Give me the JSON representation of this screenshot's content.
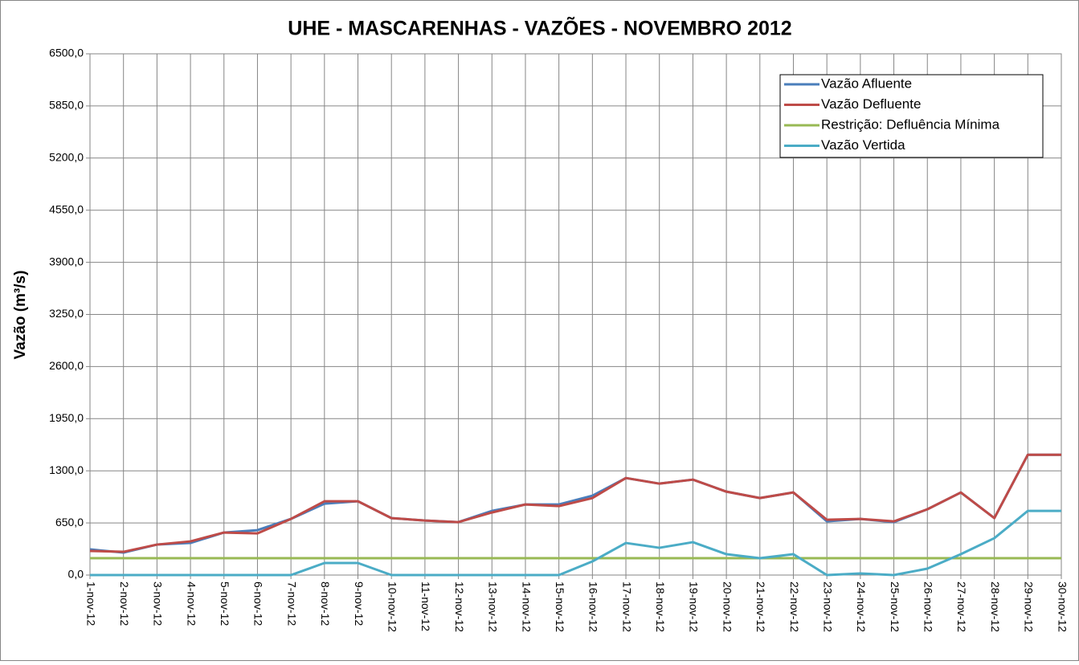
{
  "chart_data": {
    "type": "line",
    "title": "UHE - MASCARENHAS - VAZÕES - NOVEMBRO 2012",
    "y_label": "Vazão (m³/s)",
    "categories": [
      "1-nov-12",
      "2-nov-12",
      "3-nov-12",
      "4-nov-12",
      "5-nov-12",
      "6-nov-12",
      "7-nov-12",
      "8-nov-12",
      "9-nov-12",
      "10-nov-12",
      "11-nov-12",
      "12-nov-12",
      "13-nov-12",
      "14-nov-12",
      "15-nov-12",
      "16-nov-12",
      "17-nov-12",
      "18-nov-12",
      "19-nov-12",
      "20-nov-12",
      "21-nov-12",
      "22-nov-12",
      "23-nov-12",
      "24-nov-12",
      "25-nov-12",
      "26-nov-12",
      "27-nov-12",
      "28-nov-12",
      "29-nov-12",
      "30-nov-12"
    ],
    "series": [
      {
        "name": "Vazão Afluente",
        "color": "#4a7ebb",
        "values": [
          320,
          280,
          380,
          400,
          530,
          560,
          700,
          890,
          920,
          710,
          680,
          660,
          800,
          880,
          880,
          990,
          1210,
          1140,
          1190,
          1040,
          960,
          1030,
          670,
          700,
          660,
          820,
          1030,
          710,
          1500,
          1500
        ]
      },
      {
        "name": "Vazão Defluente",
        "color": "#be4b48",
        "values": [
          300,
          290,
          380,
          420,
          530,
          520,
          700,
          920,
          920,
          710,
          680,
          660,
          780,
          880,
          860,
          960,
          1210,
          1140,
          1190,
          1040,
          960,
          1030,
          690,
          700,
          670,
          820,
          1030,
          710,
          1500,
          1500
        ]
      },
      {
        "name": "Restrição: Defluência Mínima",
        "color": "#98b954",
        "values": [
          210,
          210,
          210,
          210,
          210,
          210,
          210,
          210,
          210,
          210,
          210,
          210,
          210,
          210,
          210,
          210,
          210,
          210,
          210,
          210,
          210,
          210,
          210,
          210,
          210,
          210,
          210,
          210,
          210,
          210
        ]
      },
      {
        "name": "Vazão Vertida",
        "color": "#4bacc6",
        "values": [
          0,
          0,
          0,
          0,
          0,
          0,
          0,
          150,
          150,
          0,
          0,
          0,
          0,
          0,
          0,
          170,
          400,
          340,
          410,
          260,
          210,
          260,
          0,
          20,
          0,
          80,
          260,
          460,
          800,
          800
        ]
      }
    ],
    "ylim": [
      0,
      6500
    ],
    "yticks": [
      {
        "value": 0,
        "label": "0,0"
      },
      {
        "value": 650,
        "label": "650,0"
      },
      {
        "value": 1300,
        "label": "1300,0"
      },
      {
        "value": 1950,
        "label": "1950,0"
      },
      {
        "value": 2600,
        "label": "2600,0"
      },
      {
        "value": 3250,
        "label": "3250,0"
      },
      {
        "value": 3900,
        "label": "3900,0"
      },
      {
        "value": 4550,
        "label": "4550,0"
      },
      {
        "value": 5200,
        "label": "5200,0"
      },
      {
        "value": 5850,
        "label": "5850,0"
      },
      {
        "value": 6500,
        "label": "6500,0"
      }
    ],
    "grid": true,
    "legend": "upper right"
  }
}
